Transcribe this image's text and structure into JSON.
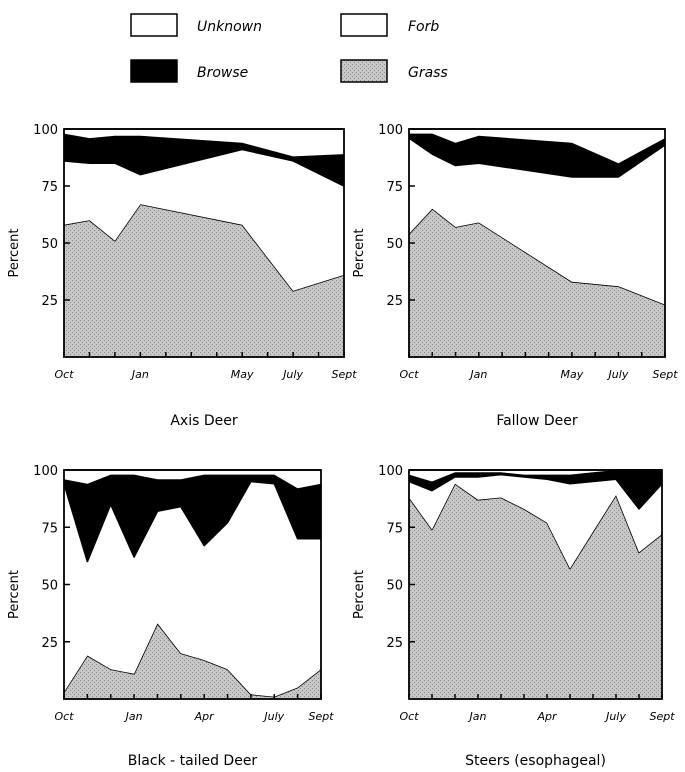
{
  "legend": [
    {
      "key": "unknown",
      "label": "Unknown",
      "fill": "#ffffff"
    },
    {
      "key": "forb",
      "label": "Forb",
      "fill": "#ffffff"
    },
    {
      "key": "browse",
      "label": "Browse",
      "fill": "#000000"
    },
    {
      "key": "grass",
      "label": "Grass",
      "fill": "#c8c8c8"
    }
  ],
  "colors": {
    "grass": "#c8c8c8",
    "browse": "#000000",
    "forb": "#ffffff",
    "unknown": "#ffffff",
    "axis": "#000000"
  },
  "chart_data": [
    {
      "type": "area",
      "title": "Axis Deer",
      "ylabel": "Percent",
      "ylim": [
        0,
        100
      ],
      "yticks": [
        25,
        50,
        75,
        100
      ],
      "xlim": [
        0,
        11
      ],
      "xticks": [
        {
          "label": "Oct",
          "x": 0
        },
        {
          "label": "Jan",
          "x": 3
        },
        {
          "label": "May",
          "x": 7
        },
        {
          "label": "July",
          "x": 9
        },
        {
          "label": "Sept",
          "x": 11
        }
      ],
      "stack_order": [
        "Grass",
        "Forb",
        "Browse",
        "Unknown"
      ],
      "x": [
        0,
        1,
        2,
        3,
        7,
        9,
        11
      ],
      "series": [
        {
          "name": "Grass",
          "values": [
            58,
            60,
            51,
            67,
            58,
            29,
            36
          ]
        },
        {
          "name": "Forb",
          "values": [
            28,
            25,
            34,
            13,
            33,
            57,
            39
          ]
        },
        {
          "name": "Browse",
          "values": [
            12,
            11,
            12,
            17,
            3,
            2,
            14
          ]
        },
        {
          "name": "Unknown",
          "values": [
            2,
            4,
            3,
            3,
            6,
            12,
            11
          ]
        }
      ]
    },
    {
      "type": "area",
      "title": "Fallow Deer",
      "ylabel": "Percent",
      "ylim": [
        0,
        100
      ],
      "yticks": [
        25,
        50,
        75,
        100
      ],
      "xlim": [
        0,
        11
      ],
      "xticks": [
        {
          "label": "Oct",
          "x": 0
        },
        {
          "label": "Jan",
          "x": 3
        },
        {
          "label": "May",
          "x": 7
        },
        {
          "label": "July",
          "x": 9
        },
        {
          "label": "Sept",
          "x": 11
        }
      ],
      "stack_order": [
        "Grass",
        "Forb",
        "Browse",
        "Unknown"
      ],
      "x": [
        0,
        1,
        2,
        3,
        7,
        9,
        11
      ],
      "series": [
        {
          "name": "Grass",
          "values": [
            54,
            65,
            57,
            59,
            33,
            31,
            23
          ]
        },
        {
          "name": "Forb",
          "values": [
            42,
            24,
            27,
            26,
            46,
            48,
            70
          ]
        },
        {
          "name": "Browse",
          "values": [
            2,
            9,
            10,
            12,
            15,
            6,
            3
          ]
        },
        {
          "name": "Unknown",
          "values": [
            2,
            2,
            6,
            3,
            6,
            15,
            4
          ]
        }
      ]
    },
    {
      "type": "area",
      "title": "Black - tailed Deer",
      "ylabel": "Percent",
      "ylim": [
        0,
        100
      ],
      "yticks": [
        25,
        50,
        75,
        100
      ],
      "xlim": [
        0,
        11
      ],
      "xticks": [
        {
          "label": "Oct",
          "x": 0
        },
        {
          "label": "Jan",
          "x": 3
        },
        {
          "label": "Apr",
          "x": 6
        },
        {
          "label": "July",
          "x": 9
        },
        {
          "label": "Sept",
          "x": 11
        }
      ],
      "stack_order": [
        "Grass",
        "Forb",
        "Browse",
        "Unknown"
      ],
      "x": [
        0,
        1,
        2,
        3,
        4,
        5,
        6,
        7,
        8,
        9,
        10,
        11
      ],
      "series": [
        {
          "name": "Grass",
          "values": [
            3,
            19,
            13,
            11,
            33,
            20,
            17,
            13,
            2,
            1,
            5,
            13
          ]
        },
        {
          "name": "Forb",
          "values": [
            91,
            41,
            72,
            51,
            49,
            64,
            50,
            64,
            93,
            93,
            65,
            57
          ]
        },
        {
          "name": "Browse",
          "values": [
            2,
            34,
            13,
            36,
            14,
            12,
            31,
            21,
            3,
            4,
            22,
            24
          ]
        },
        {
          "name": "Unknown",
          "values": [
            4,
            6,
            2,
            2,
            4,
            4,
            2,
            2,
            2,
            2,
            8,
            6
          ]
        }
      ]
    },
    {
      "type": "area",
      "title": "Steers (esophageal)",
      "ylabel": "Percent",
      "ylim": [
        0,
        100
      ],
      "yticks": [
        25,
        50,
        75,
        100
      ],
      "xlim": [
        0,
        11
      ],
      "xticks": [
        {
          "label": "Oct",
          "x": 0
        },
        {
          "label": "Jan",
          "x": 3
        },
        {
          "label": "Apr",
          "x": 6
        },
        {
          "label": "July",
          "x": 9
        },
        {
          "label": "Sept",
          "x": 11
        }
      ],
      "stack_order": [
        "Grass",
        "Forb",
        "Browse",
        "Unknown"
      ],
      "x": [
        0,
        1,
        2,
        3,
        4,
        5,
        6,
        7,
        8,
        9,
        10,
        11
      ],
      "series": [
        {
          "name": "Grass",
          "values": [
            88,
            74,
            94,
            87,
            88,
            83,
            77,
            57,
            73,
            89,
            64,
            72
          ]
        },
        {
          "name": "Forb",
          "values": [
            7,
            17,
            3,
            10,
            10,
            14,
            19,
            37,
            22,
            7,
            19,
            22
          ]
        },
        {
          "name": "Browse",
          "values": [
            3,
            4,
            2,
            2,
            1,
            1,
            2,
            4,
            4,
            4,
            17,
            6
          ]
        },
        {
          "name": "Unknown",
          "values": [
            2,
            5,
            1,
            1,
            1,
            2,
            2,
            2,
            1,
            0,
            0,
            0
          ]
        }
      ]
    }
  ]
}
